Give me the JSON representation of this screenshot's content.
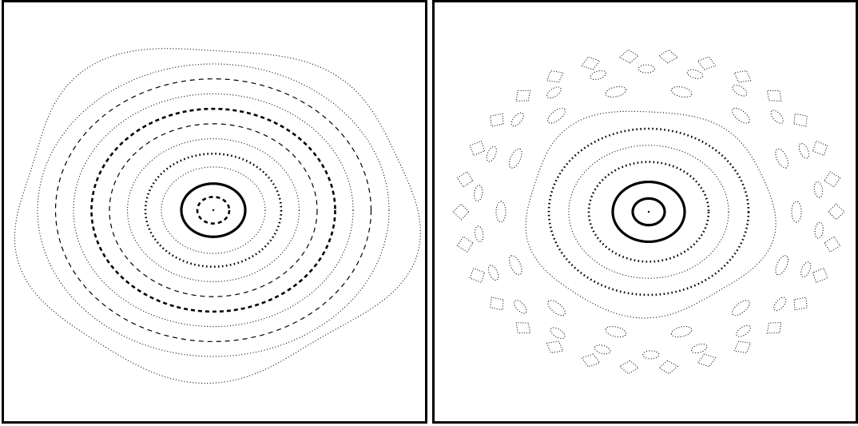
{
  "colors": {
    "background": "#ffffff",
    "ink": "#000000",
    "frame": "#000000"
  },
  "panels": [
    {
      "id": "left",
      "description_kind": "concentric-dotted-rings",
      "rings": [
        {
          "r": 0.08,
          "style": "dashed-bold"
        },
        {
          "r": 0.16,
          "style": "solid-bold"
        },
        {
          "r": 0.26,
          "style": "dotted-fine"
        },
        {
          "r": 0.34,
          "style": "dotted-bold"
        },
        {
          "r": 0.43,
          "style": "dotted-fine"
        },
        {
          "r": 0.52,
          "style": "dashed-fine"
        },
        {
          "r": 0.61,
          "style": "dashed-bold"
        },
        {
          "r": 0.7,
          "style": "dotted-fine"
        },
        {
          "r": 0.79,
          "style": "dashed-fine"
        },
        {
          "r": 0.88,
          "style": "dotted-fine"
        },
        {
          "r": 1.0,
          "style": "dotted-fine",
          "wobble": 0.04
        }
      ]
    },
    {
      "id": "right",
      "description_kind": "rings-with-island-chains",
      "rings": [
        {
          "r": 0.08,
          "style": "solid-bold"
        },
        {
          "r": 0.18,
          "style": "solid-bold"
        },
        {
          "r": 0.3,
          "style": "dotted-bold"
        },
        {
          "r": 0.4,
          "style": "dotted-fine"
        },
        {
          "r": 0.5,
          "style": "dotted-bold"
        },
        {
          "r": 0.62,
          "style": "dotted-fine",
          "wobble": 0.03
        }
      ],
      "island_chains": [
        {
          "r": 0.74,
          "count": 14
        },
        {
          "r": 0.86,
          "count": 22
        }
      ],
      "outer_spikes": {
        "r": 0.96,
        "count": 30
      }
    }
  ]
}
